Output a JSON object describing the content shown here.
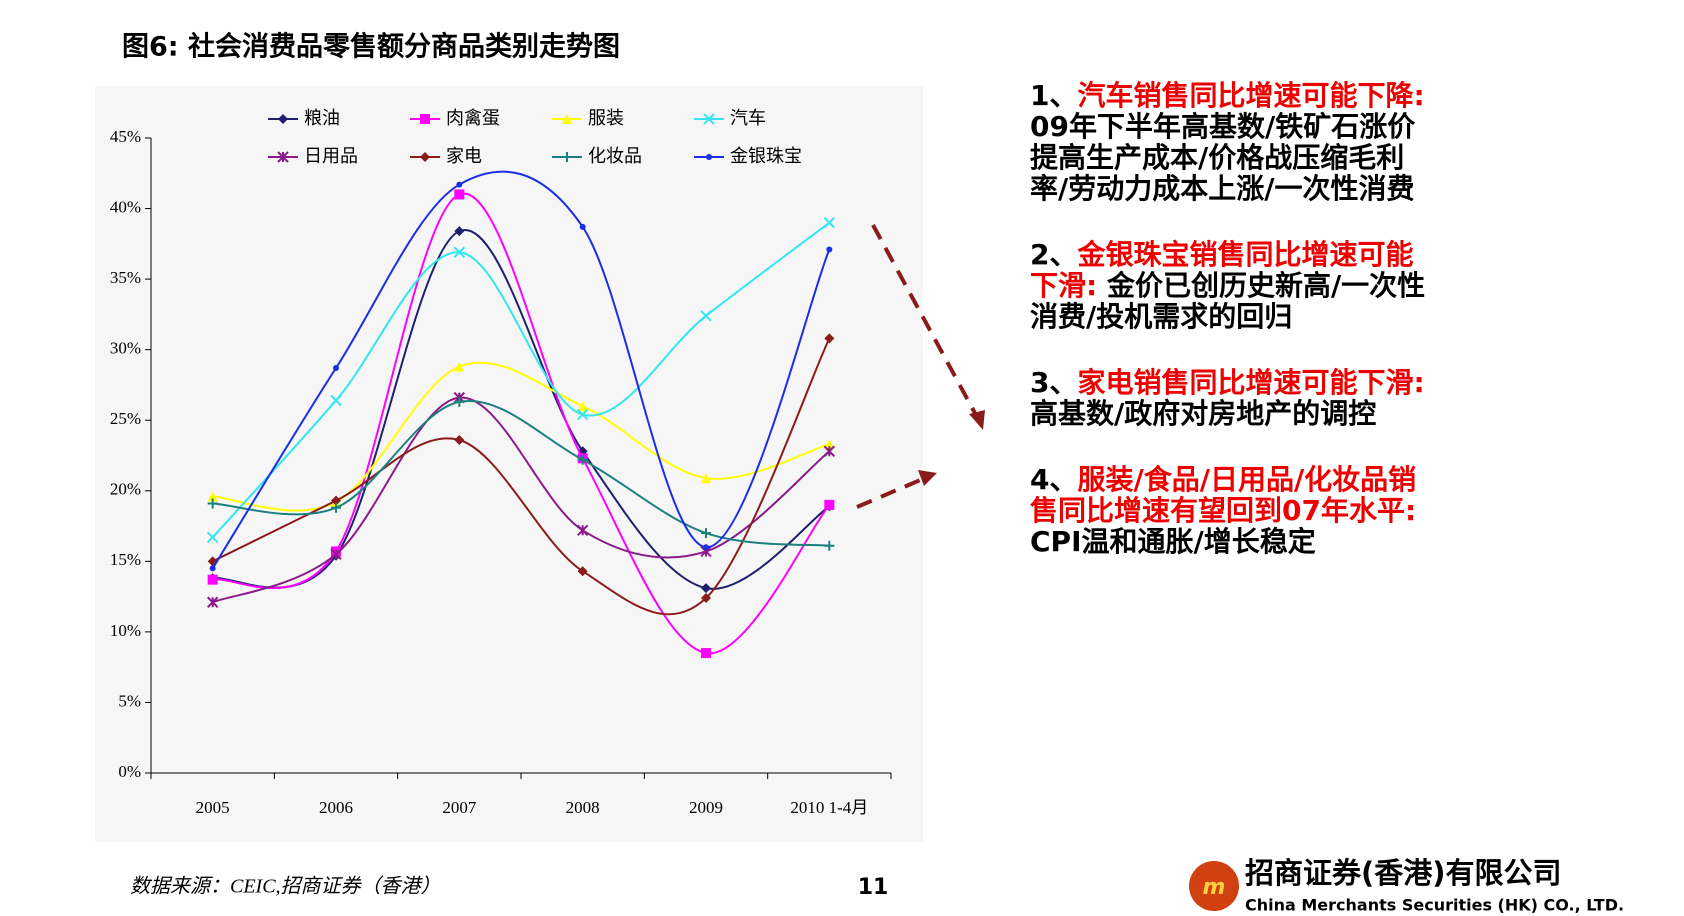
{
  "header": {
    "title": "图6:  社会消费品零售额分商品类别走势图"
  },
  "chart_data": {
    "type": "line",
    "categories": [
      "2005",
      "2006",
      "2007",
      "2008",
      "2009",
      "2010 1-4月"
    ],
    "series": [
      {
        "name": "粮油",
        "color": "#1f1f6e",
        "marker": "diamond",
        "values": [
          13.8,
          15.4,
          38.4,
          22.8,
          13.1,
          18.9
        ]
      },
      {
        "name": "肉禽蛋",
        "color": "#ff00ff",
        "marker": "square",
        "values": [
          13.7,
          15.7,
          41.0,
          22.3,
          8.5,
          19.0
        ]
      },
      {
        "name": "服装",
        "color": "#ffff00",
        "marker": "triangle",
        "values": [
          19.6,
          19.2,
          28.8,
          26.0,
          20.9,
          23.3
        ]
      },
      {
        "name": "汽车",
        "color": "#33e6f0",
        "marker": "x",
        "values": [
          16.7,
          26.4,
          36.9,
          25.4,
          32.4,
          39.0
        ]
      },
      {
        "name": "日用品",
        "color": "#8b1a8b",
        "marker": "star",
        "values": [
          12.1,
          15.5,
          26.6,
          17.2,
          15.7,
          22.8
        ]
      },
      {
        "name": "家电",
        "color": "#8b1a1a",
        "marker": "diamond",
        "values": [
          15.0,
          19.3,
          23.6,
          14.3,
          12.4,
          30.8
        ]
      },
      {
        "name": "化妆品",
        "color": "#1a8080",
        "marker": "plus",
        "values": [
          19.1,
          18.8,
          26.3,
          22.2,
          17.0,
          16.1
        ]
      },
      {
        "name": "金银珠宝",
        "color": "#1a2ee6",
        "marker": "dot",
        "values": [
          14.5,
          28.7,
          41.7,
          38.7,
          16.0,
          37.1
        ]
      }
    ],
    "ylim": [
      0,
      45
    ],
    "yticks": [
      {
        "value": 0,
        "label": "0%"
      },
      {
        "value": 5,
        "label": "5%"
      },
      {
        "value": 10,
        "label": "10%"
      },
      {
        "value": 15,
        "label": "15%"
      },
      {
        "value": 20,
        "label": "20%"
      },
      {
        "value": 25,
        "label": "25%"
      },
      {
        "value": 30,
        "label": "30%"
      },
      {
        "value": 35,
        "label": "35%"
      },
      {
        "value": 40,
        "label": "40%"
      },
      {
        "value": 45,
        "label": "45%"
      }
    ]
  },
  "notes": [
    {
      "number": "1、",
      "heading": "汽车销售同比增速可能下降:",
      "body": " 09年下半年高基数/铁矿石涨价提高生产成本/价格战压缩毛利率/劳动力成本上涨/一次性消费"
    },
    {
      "number": "2、",
      "heading": "金银珠宝销售同比增速可能下滑:",
      "body": " 金价已创历史新高/一次性消费/投机需求的回归"
    },
    {
      "number": "3、",
      "heading": "家电销售同比增速可能下滑:",
      "body": " 高基数/政府对房地产的调控"
    },
    {
      "number": "4、",
      "heading": "服装/食品/日用品/化妆品销售同比增速有望回到07年水平:",
      "body": " CPI温和通胀/增长稳定"
    }
  ],
  "footer": {
    "source": "数据来源：CEIC,招商证券（香港）",
    "page": "11",
    "company_cn": "招商证券(香港)有限公司",
    "company_en": "China Merchants Securities (HK) CO., LTD."
  }
}
